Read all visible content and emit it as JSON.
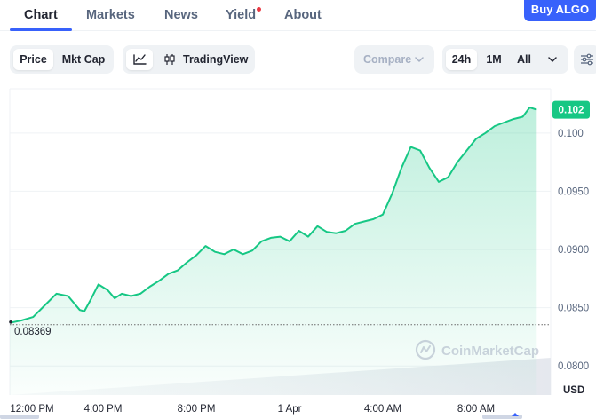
{
  "nav": {
    "tabs": [
      {
        "label": "Chart",
        "active": true
      },
      {
        "label": "Markets",
        "active": false
      },
      {
        "label": "News",
        "active": false
      },
      {
        "label": "Yield",
        "active": false,
        "has_badge": true
      },
      {
        "label": "About",
        "active": false
      }
    ],
    "buy_button": "Buy ALGO"
  },
  "toolbar": {
    "price_label": "Price",
    "mktcap_label": "Mkt Cap",
    "line_icon": "line-chart-icon",
    "tradingview_icon": "candlestick-icon",
    "tradingview_label": "TradingView",
    "compare_label": "Compare",
    "range_options": [
      "24h",
      "1M",
      "All"
    ],
    "selected_range": "24h",
    "settings_icon": "sliders-icon"
  },
  "chart_data": {
    "type": "area",
    "title": "",
    "y_unit": "USD",
    "ylim": [
      0.0775,
      0.1038
    ],
    "y_ticks": [
      "0.100",
      "0.0950",
      "0.0900",
      "0.0850",
      "0.0800"
    ],
    "x_ticks": [
      "12:00 PM",
      "4:00 PM",
      "8:00 PM",
      "1 Apr",
      "4:00 AM",
      "8:00 AM"
    ],
    "current_price": "0.102",
    "open_price_label": "0.08369",
    "open_price": 0.08369,
    "watermark": "CoinMarketCap",
    "line_color": "#16c784",
    "hours_since_start": [
      0,
      0.5,
      1,
      1.5,
      2,
      2.5,
      3,
      3.2,
      3.5,
      3.8,
      4.2,
      4.5,
      4.8,
      5.2,
      5.6,
      6,
      6.4,
      6.8,
      7.2,
      7.6,
      8,
      8.4,
      8.8,
      9.2,
      9.6,
      10,
      10.4,
      10.8,
      11.2,
      11.6,
      12,
      12.4,
      12.8,
      13.2,
      13.6,
      14,
      14.4,
      14.8,
      15.2,
      15.6,
      16,
      16.4,
      16.8,
      17.2,
      17.6,
      18,
      18.4,
      18.8,
      19.2,
      19.6,
      20,
      20.4,
      20.8,
      21.2,
      21.6,
      22,
      22.3,
      22.6
    ],
    "price": [
      0.0837,
      0.0839,
      0.0842,
      0.0852,
      0.0862,
      0.086,
      0.0848,
      0.0847,
      0.0858,
      0.087,
      0.0865,
      0.0858,
      0.0862,
      0.086,
      0.0862,
      0.0868,
      0.0873,
      0.0879,
      0.0882,
      0.0889,
      0.0895,
      0.0903,
      0.0898,
      0.0896,
      0.09,
      0.0896,
      0.0899,
      0.0907,
      0.091,
      0.0911,
      0.0907,
      0.0916,
      0.0911,
      0.092,
      0.0915,
      0.0914,
      0.0916,
      0.0922,
      0.0924,
      0.0926,
      0.093,
      0.0948,
      0.097,
      0.0988,
      0.0985,
      0.097,
      0.0958,
      0.0962,
      0.0975,
      0.0985,
      0.0995,
      0.1,
      0.1006,
      0.1009,
      0.1012,
      0.1014,
      0.1022,
      0.102
    ]
  },
  "colors": {
    "accent": "#3861fb",
    "up": "#16c784",
    "badge": "#ea3943"
  }
}
